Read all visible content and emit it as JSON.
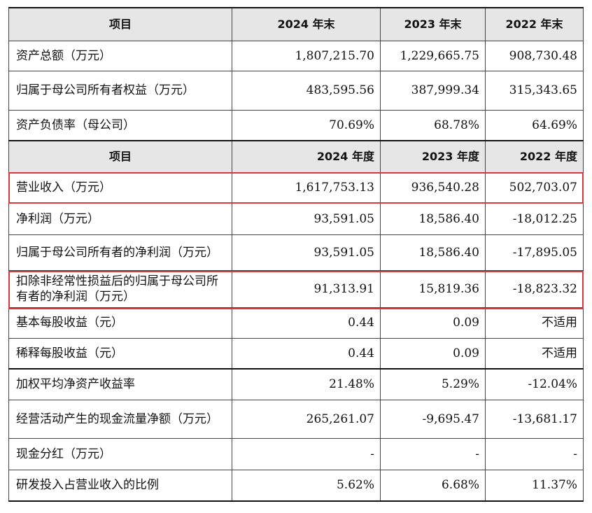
{
  "header1": [
    "项目",
    "2024 年末",
    "2023 年末",
    "2022 年末"
  ],
  "rows1": [
    {
      "label": "资产总额（万元）",
      "v": [
        "1,807,215.70",
        "1,229,665.75",
        "908,730.48"
      ]
    },
    {
      "label": "归属于母公司所有者权益（万元）",
      "v": [
        "483,595.56",
        "387,999.34",
        "315,343.65"
      ]
    },
    {
      "label": "资产负债率（母公司）",
      "v": [
        "70.69%",
        "68.78%",
        "64.69%"
      ]
    }
  ],
  "header2": [
    "项目",
    "2024 年度",
    "2023 年度",
    "2022 年度"
  ],
  "rows2": [
    {
      "label": "营业收入（万元）",
      "v": [
        "1,617,753.13",
        "936,540.28",
        "502,703.07"
      ]
    },
    {
      "label": "净利润（万元）",
      "v": [
        "93,591.05",
        "18,586.40",
        "-18,012.25"
      ]
    },
    {
      "label": "归属于母公司所有者的净利润（万元）",
      "v": [
        "93,591.05",
        "18,586.40",
        "-17,895.05"
      ]
    },
    {
      "label": "扣除非经常性损益后的归属于母公司所有者的净利润（万元）",
      "v": [
        "91,313.91",
        "15,819.36",
        "-18,823.32"
      ]
    },
    {
      "label": "基本每股收益（元）",
      "v": [
        "0.44",
        "0.09",
        "不适用"
      ]
    },
    {
      "label": "稀释每股收益（元）",
      "v": [
        "0.44",
        "0.09",
        "不适用"
      ]
    },
    {
      "label": "加权平均净资产收益率",
      "v": [
        "21.48%",
        "5.29%",
        "-12.04%"
      ]
    },
    {
      "label": "经营活动产生的现金流量净额（万元）",
      "v": [
        "265,261.07",
        "-9,695.47",
        "-13,681.17"
      ]
    },
    {
      "label": "现金分红（万元）",
      "v": [
        "-",
        "-",
        "-"
      ]
    },
    {
      "label": "研发投入占营业收入的比例",
      "v": [
        "5.62%",
        "6.68%",
        "11.37%"
      ]
    }
  ],
  "highlight_color": "#d9363e"
}
